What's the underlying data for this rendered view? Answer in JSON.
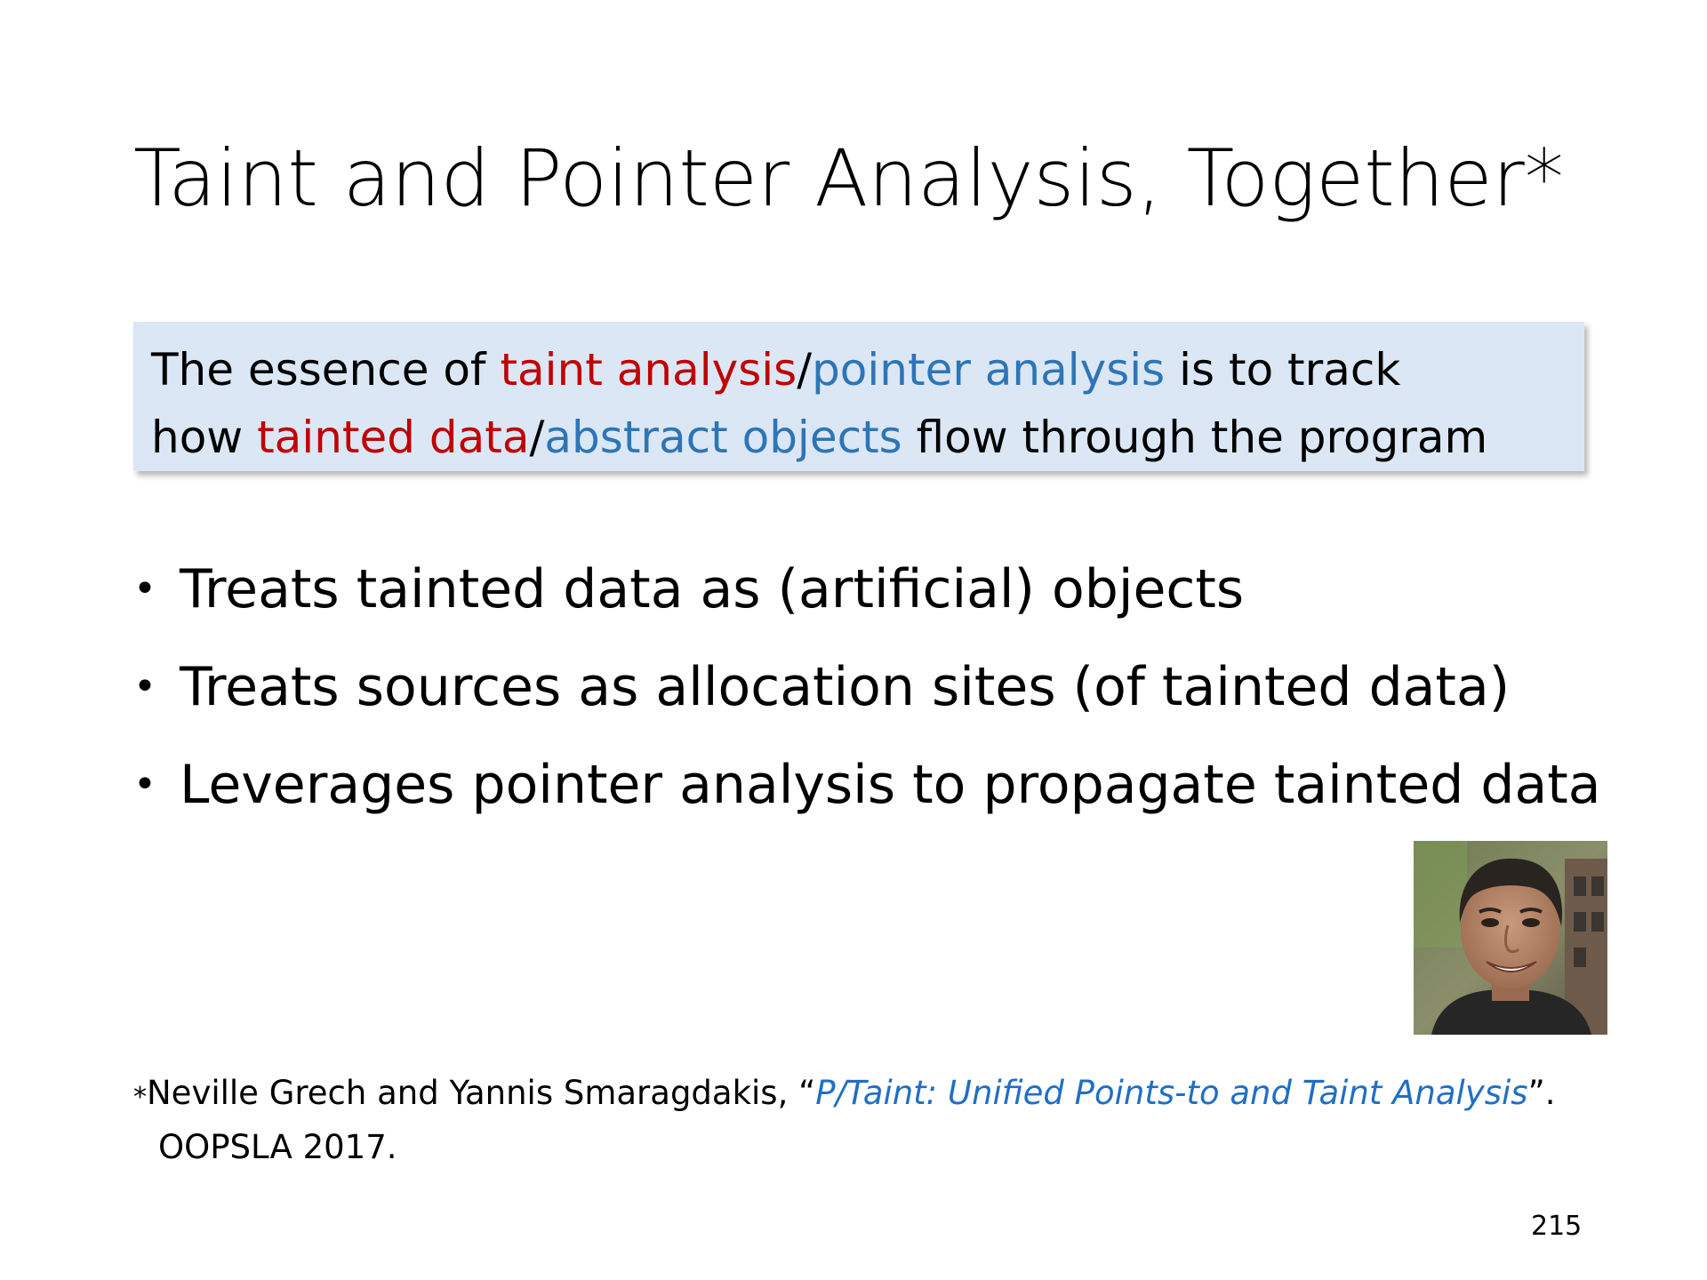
{
  "slide": {
    "title": "Taint and Pointer Analysis, Together*",
    "page_number": "215"
  },
  "essence_box": {
    "line1": {
      "prefix": "The essence of ",
      "red_term": "taint analysis",
      "slash": "/",
      "blue_term": "pointer analysis",
      "suffix": " is to track"
    },
    "line2": {
      "prefix": "how ",
      "red_term": "tainted data",
      "slash": "/",
      "blue_term": "abstract objects",
      "suffix": " flow through the program"
    },
    "colors": {
      "background": "#dbe7f4",
      "red_term": "#c00000",
      "blue_term": "#2e75b6"
    }
  },
  "bullets": [
    {
      "marker": "•",
      "text": "Treats tainted data as (artificial) objects"
    },
    {
      "marker": "•",
      "text": "Treats sources as allocation sites (of tainted data)"
    },
    {
      "marker": "•",
      "text": "Leverages pointer analysis to propagate tainted data"
    }
  ],
  "footnote": {
    "marker": "*",
    "authors": "Neville Grech and Yannis Smaragdakis, “",
    "paper_title": "P/Taint: Unified Points-to and Taint Analysis",
    "close": "”.",
    "venue": "OOPSLA 2017.",
    "link_color": "#1f6fc5"
  },
  "photo": {
    "icon": "portrait-photo"
  }
}
